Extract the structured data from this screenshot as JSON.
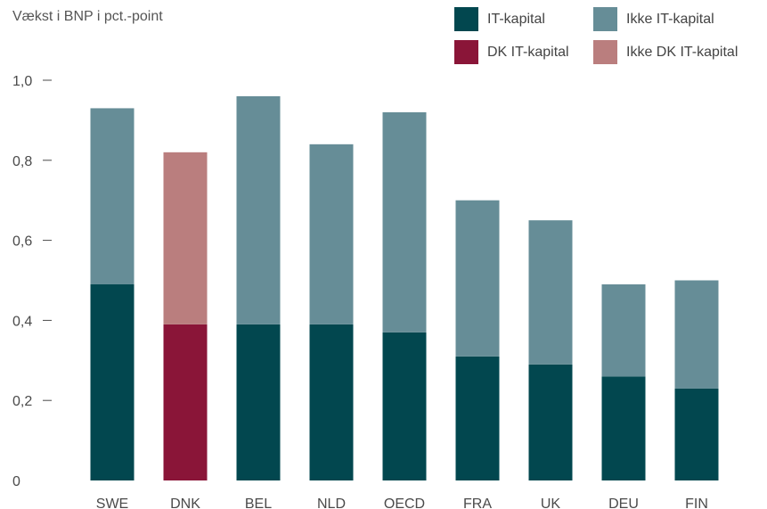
{
  "chart_data": {
    "type": "bar",
    "stacked": true,
    "ylabel": "Vækst i BNP i pct.-point",
    "ylim": [
      0,
      1.0
    ],
    "yticks": [
      "0",
      "0,2",
      "0,4",
      "0,6",
      "0,8",
      "1,0"
    ],
    "ytick_values": [
      0,
      0.2,
      0.4,
      0.6,
      0.8,
      1.0
    ],
    "categories": [
      "SWE",
      "DNK",
      "BEL",
      "NLD",
      "OECD",
      "FRA",
      "UK",
      "DEU",
      "FIN"
    ],
    "highlight_category": "DNK",
    "series": [
      {
        "name": "IT-kapital",
        "values": [
          0.49,
          0.39,
          0.39,
          0.39,
          0.37,
          0.31,
          0.29,
          0.26,
          0.23
        ]
      },
      {
        "name": "Ikke IT-kapital",
        "values": [
          0.44,
          0.43,
          0.57,
          0.45,
          0.55,
          0.39,
          0.36,
          0.23,
          0.27
        ]
      }
    ],
    "legend": [
      {
        "label": "IT-kapital",
        "color": "#02474f"
      },
      {
        "label": "Ikke IT-kapital",
        "color": "#668d97"
      },
      {
        "label": "DK IT-kapital",
        "color": "#8a1538"
      },
      {
        "label": "Ikke DK IT-kapital",
        "color": "#ba7e7e"
      }
    ],
    "colors": {
      "it": "#02474f",
      "non_it": "#668d97",
      "dk_it": "#8a1538",
      "dk_non_it": "#ba7e7e"
    },
    "grid": false,
    "legend_position": "top-right"
  }
}
